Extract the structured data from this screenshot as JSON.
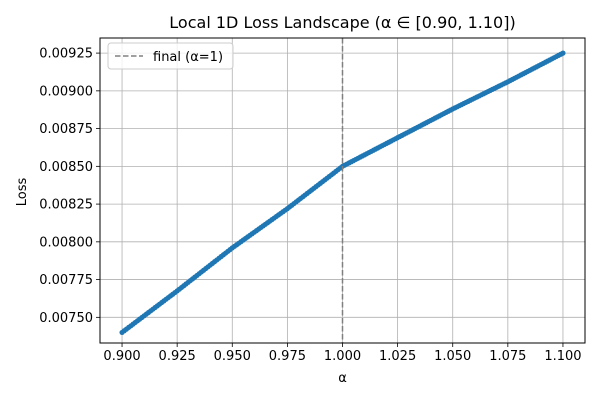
{
  "chart_data": {
    "type": "line",
    "title": "Local 1D Loss Landscape (α ∈ [0.90, 1.10])",
    "xlabel": "α",
    "ylabel": "Loss",
    "xlim": [
      0.89,
      1.11
    ],
    "ylim": [
      0.00733,
      0.00935
    ],
    "x_ticks": [
      0.9,
      0.925,
      0.95,
      0.975,
      1.0,
      1.025,
      1.05,
      1.075,
      1.1
    ],
    "x_tick_labels": [
      "0.900",
      "0.925",
      "0.950",
      "0.975",
      "1.000",
      "1.025",
      "1.050",
      "1.075",
      "1.100"
    ],
    "y_ticks": [
      0.0075,
      0.00775,
      0.008,
      0.00825,
      0.0085,
      0.00875,
      0.009,
      0.00925
    ],
    "y_tick_labels": [
      "0.00750",
      "0.00775",
      "0.00800",
      "0.00825",
      "0.00850",
      "0.00875",
      "0.00900",
      "0.00925"
    ],
    "grid": true,
    "legend_position": "top-left",
    "series": [
      {
        "color": "#1f77b4",
        "marker": "dot",
        "x": [
          0.9,
          0.925,
          0.95,
          0.975,
          1.0,
          1.025,
          1.05,
          1.075,
          1.1
        ],
        "y": [
          0.0074,
          0.007675,
          0.00796,
          0.00822,
          0.0085,
          0.00869,
          0.00888,
          0.00906,
          0.00925
        ]
      }
    ],
    "reference_line": {
      "label": "final (α=1)",
      "x": 1.0,
      "color": "#808080",
      "style": "dashed"
    }
  }
}
